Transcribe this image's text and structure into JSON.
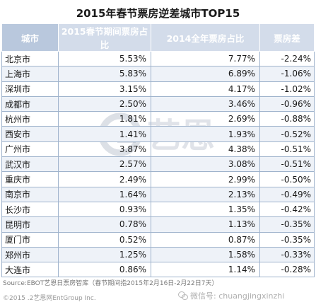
{
  "title": "2015年春节票房逆差城市TOP15",
  "table": {
    "headers": [
      "城市",
      "2015春节期间票房占比",
      "2014全年票房占比",
      "票房差"
    ],
    "rows": [
      {
        "city": "北京市",
        "share2015": "5.53%",
        "share2014": "7.77%",
        "diff": "-2.24%"
      },
      {
        "city": "上海市",
        "share2015": "5.83%",
        "share2014": "6.89%",
        "diff": "-1.06%"
      },
      {
        "city": "深圳市",
        "share2015": "3.15%",
        "share2014": "4.17%",
        "diff": "-1.02%"
      },
      {
        "city": "成都市",
        "share2015": "2.50%",
        "share2014": "3.46%",
        "diff": "-0.96%"
      },
      {
        "city": "杭州市",
        "share2015": "1.81%",
        "share2014": "2.69%",
        "diff": "-0.88%"
      },
      {
        "city": "西安市",
        "share2015": "1.41%",
        "share2014": "1.93%",
        "diff": "-0.52%"
      },
      {
        "city": "广州市",
        "share2015": "3.87%",
        "share2014": "4.38%",
        "diff": "-0.51%"
      },
      {
        "city": "武汉市",
        "share2015": "2.57%",
        "share2014": "3.08%",
        "diff": "-0.51%"
      },
      {
        "city": "重庆市",
        "share2015": "2.49%",
        "share2014": "2.99%",
        "diff": "-0.50%"
      },
      {
        "city": "南京市",
        "share2015": "1.64%",
        "share2014": "2.13%",
        "diff": "-0.49%"
      },
      {
        "city": "长沙市",
        "share2015": "0.93%",
        "share2014": "1.35%",
        "diff": "-0.42%"
      },
      {
        "city": "昆明市",
        "share2015": "0.78%",
        "share2014": "1.13%",
        "diff": "-0.35%"
      },
      {
        "city": "厦门市",
        "share2015": "0.52%",
        "share2014": "0.87%",
        "diff": "-0.35%"
      },
      {
        "city": "郑州市",
        "share2015": "1.25%",
        "share2014": "1.58%",
        "diff": "-0.33%"
      },
      {
        "city": "大连市",
        "share2015": "0.86%",
        "share2014": "1.14%",
        "diff": "-0.28%"
      }
    ]
  },
  "source": "Source:EBOT艺恩日票房智库（春节期间指2015年2月16日-2月22日7天）",
  "copyright": "©2015 .2艺恩网EntGroup Inc.",
  "wechat": "微信号: chuangjingxinzhi",
  "watermark": {
    "brand": "艺恩",
    "sub": "entgroup",
    "color": "#c8ced8"
  }
}
